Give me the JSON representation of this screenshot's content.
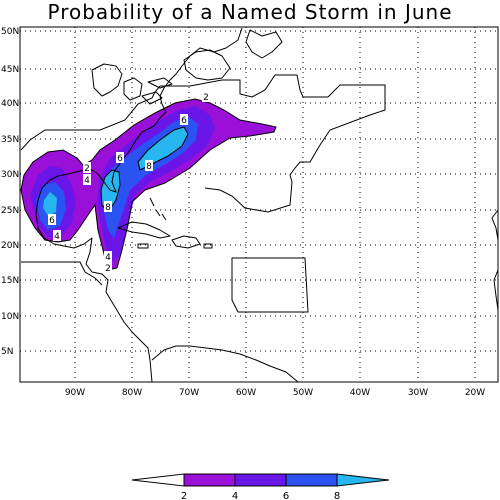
{
  "title": "Probability of a Named Storm in June",
  "lat_labels": [
    "50N",
    "45N",
    "40N",
    "35N",
    "30N",
    "25N",
    "20N",
    "15N",
    "10N",
    "5N"
  ],
  "lon_labels": [
    "90W",
    "80W",
    "70W",
    "60W",
    "50W",
    "40W",
    "30W",
    "20W"
  ],
  "contour_labels": [
    "2",
    "2",
    "2",
    "4",
    "4",
    "4",
    "6",
    "6",
    "6",
    "8",
    "8"
  ],
  "legend": {
    "tick_labels": [
      "2",
      "4",
      "6",
      "8"
    ],
    "colors": [
      "#ffffff",
      "#9a10d8",
      "#6a16e8",
      "#2b52f2",
      "#28b6f0"
    ]
  },
  "colors": {
    "level_2_4": "#9a10d8",
    "level_4_6": "#6a16e8",
    "level_6_8": "#2b52f2",
    "level_8_plus": "#28b6f0",
    "outline": "#000000",
    "grid": "#000000"
  }
}
